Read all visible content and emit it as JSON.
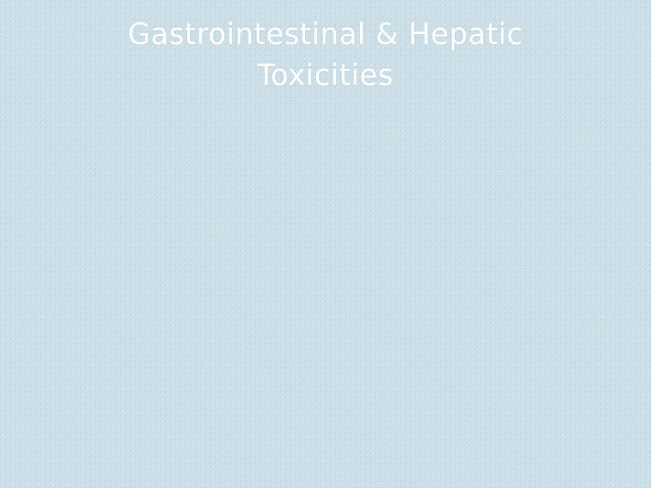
{
  "slide": {
    "title_line1": "Gastrointestinal & Hepatic",
    "title_line2": "Toxicities"
  }
}
